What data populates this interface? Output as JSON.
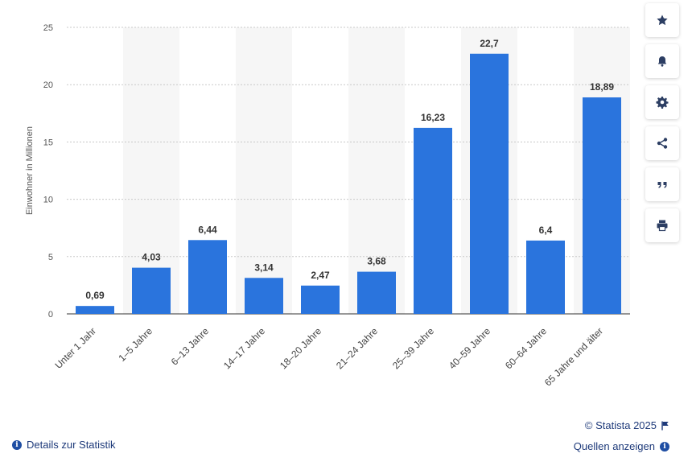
{
  "chart_data": {
    "type": "bar",
    "categories": [
      "Unter 1 Jahr",
      "1–5 Jahre",
      "6–13 Jahre",
      "14–17 Jahre",
      "18–20 Jahre",
      "21–24 Jahre",
      "25–39 Jahre",
      "40–59 Jahre",
      "60–64 Jahre",
      "65 Jahre und älter"
    ],
    "values": [
      0.69,
      4.03,
      6.44,
      3.14,
      2.47,
      3.68,
      16.23,
      22.7,
      6.4,
      18.89
    ],
    "value_labels": [
      "0,69",
      "4,03",
      "6,44",
      "3,14",
      "2,47",
      "3,68",
      "16,23",
      "22,7",
      "6,4",
      "18,89"
    ],
    "ylabel": "Einwohner in Millionen",
    "yticks": [
      0,
      5,
      10,
      15,
      20,
      25
    ],
    "ylim": [
      0,
      25
    ],
    "bar_color": "#2a74dd",
    "grid": true
  },
  "toolbar": {
    "buttons": [
      "star-icon",
      "bell-icon",
      "gear-icon",
      "share-icon",
      "quote-icon",
      "print-icon"
    ]
  },
  "footer": {
    "copyright": "© Statista 2025",
    "sources": "Quellen anzeigen",
    "details": "Details zur Statistik"
  }
}
